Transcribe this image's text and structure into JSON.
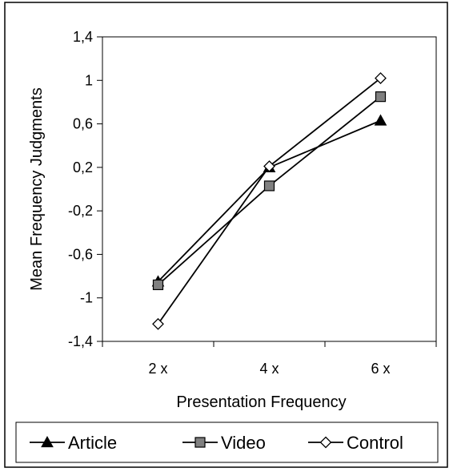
{
  "chart_data": {
    "type": "line",
    "title": "",
    "xlabel": "Presentation Frequency",
    "ylabel": "Mean Frequency Judgments",
    "categories": [
      "2 x",
      "4 x",
      "6 x"
    ],
    "ylim": [
      -1.4,
      1.4
    ],
    "yticks": [
      "1,4",
      "1",
      "0,6",
      "0,2",
      "-0,2",
      "-0,6",
      "-1",
      "-1,4"
    ],
    "ytick_values": [
      1.4,
      1.0,
      0.6,
      0.2,
      -0.2,
      -0.6,
      -1.0,
      -1.4
    ],
    "grid": false,
    "legend_position": "bottom",
    "series": [
      {
        "name": "Article",
        "marker": "triangle",
        "values": [
          -0.85,
          0.2,
          0.63
        ]
      },
      {
        "name": "Video",
        "marker": "square",
        "values": [
          -0.88,
          0.03,
          0.85
        ]
      },
      {
        "name": "Control",
        "marker": "diamond",
        "values": [
          -1.24,
          0.21,
          1.02
        ]
      }
    ],
    "colors": {
      "line": "#000000",
      "square_fill": "#808080",
      "diamond_fill": "#ffffff",
      "triangle_fill": "#000000"
    }
  }
}
